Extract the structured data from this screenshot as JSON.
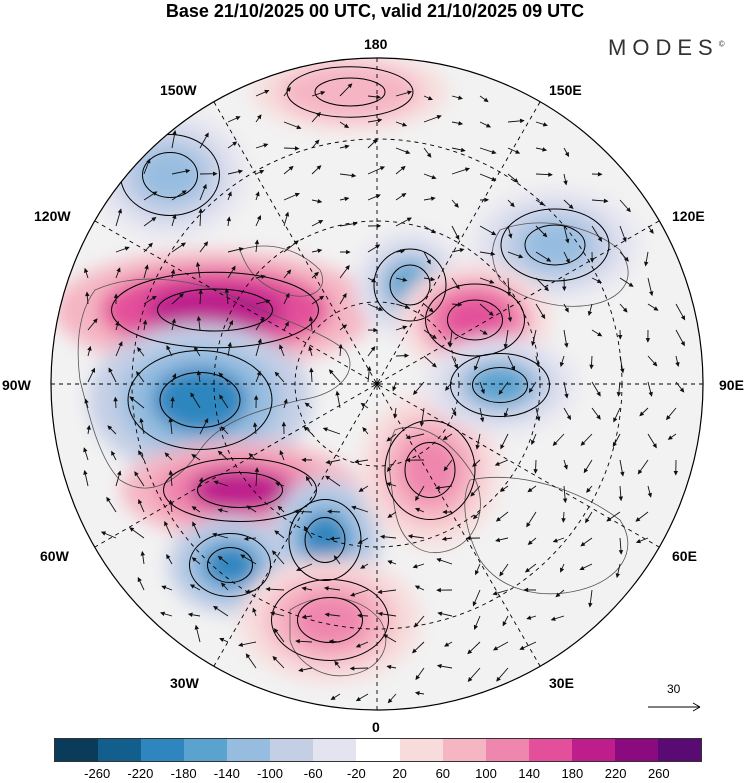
{
  "header": {
    "title": "Base 21/10/2025 00 UTC, valid 21/10/2025 09 UTC",
    "brand": "MODES"
  },
  "map_labels": {
    "lon_180": "180",
    "lon_150w": "150W",
    "lon_150e": "150E",
    "lon_120w": "120W",
    "lon_120e": "120E",
    "lon_90w": "90W",
    "lon_90e": "90E",
    "lon_60w": "60W",
    "lon_60e": "60E",
    "lon_30w": "30W",
    "lon_30e": "30E",
    "lon_0": "0"
  },
  "vector_reference": {
    "label": "30"
  },
  "colorbar": {
    "colors": [
      "#0b3b5a",
      "#125e8c",
      "#2f86bf",
      "#5aa3cf",
      "#96bde0",
      "#c4cfe6",
      "#e4e4f0",
      "#ffffff",
      "#f8dcdc",
      "#f5b5c2",
      "#ef86ad",
      "#e34f9a",
      "#bd1e8c",
      "#8c0a80",
      "#5a0a73"
    ],
    "ticks": [
      "-260",
      "-220",
      "-180",
      "-140",
      "-100",
      "-60",
      "-20",
      "20",
      "60",
      "100",
      "140",
      "180",
      "220",
      "260"
    ]
  },
  "anomalies": [
    {
      "name": "west-pacific-positive",
      "value": 100
    },
    {
      "name": "north-america-west-negative",
      "value": -100
    },
    {
      "name": "north-america-positive-max",
      "value": 220
    },
    {
      "name": "hudson-negative",
      "value": -180
    },
    {
      "name": "north-atlantic-positive",
      "value": 200
    },
    {
      "name": "labrador-negative",
      "value": -180
    },
    {
      "name": "east-atlantic-negative",
      "value": -180
    },
    {
      "name": "europe-positive",
      "value": 120
    },
    {
      "name": "siberia-negative",
      "value": -140
    },
    {
      "name": "east-siberia-negative",
      "value": -120
    },
    {
      "name": "east-siberia-positive",
      "value": 180
    },
    {
      "name": "kara-positive",
      "value": 140
    },
    {
      "name": "central-asia-negative",
      "value": -140
    }
  ]
}
